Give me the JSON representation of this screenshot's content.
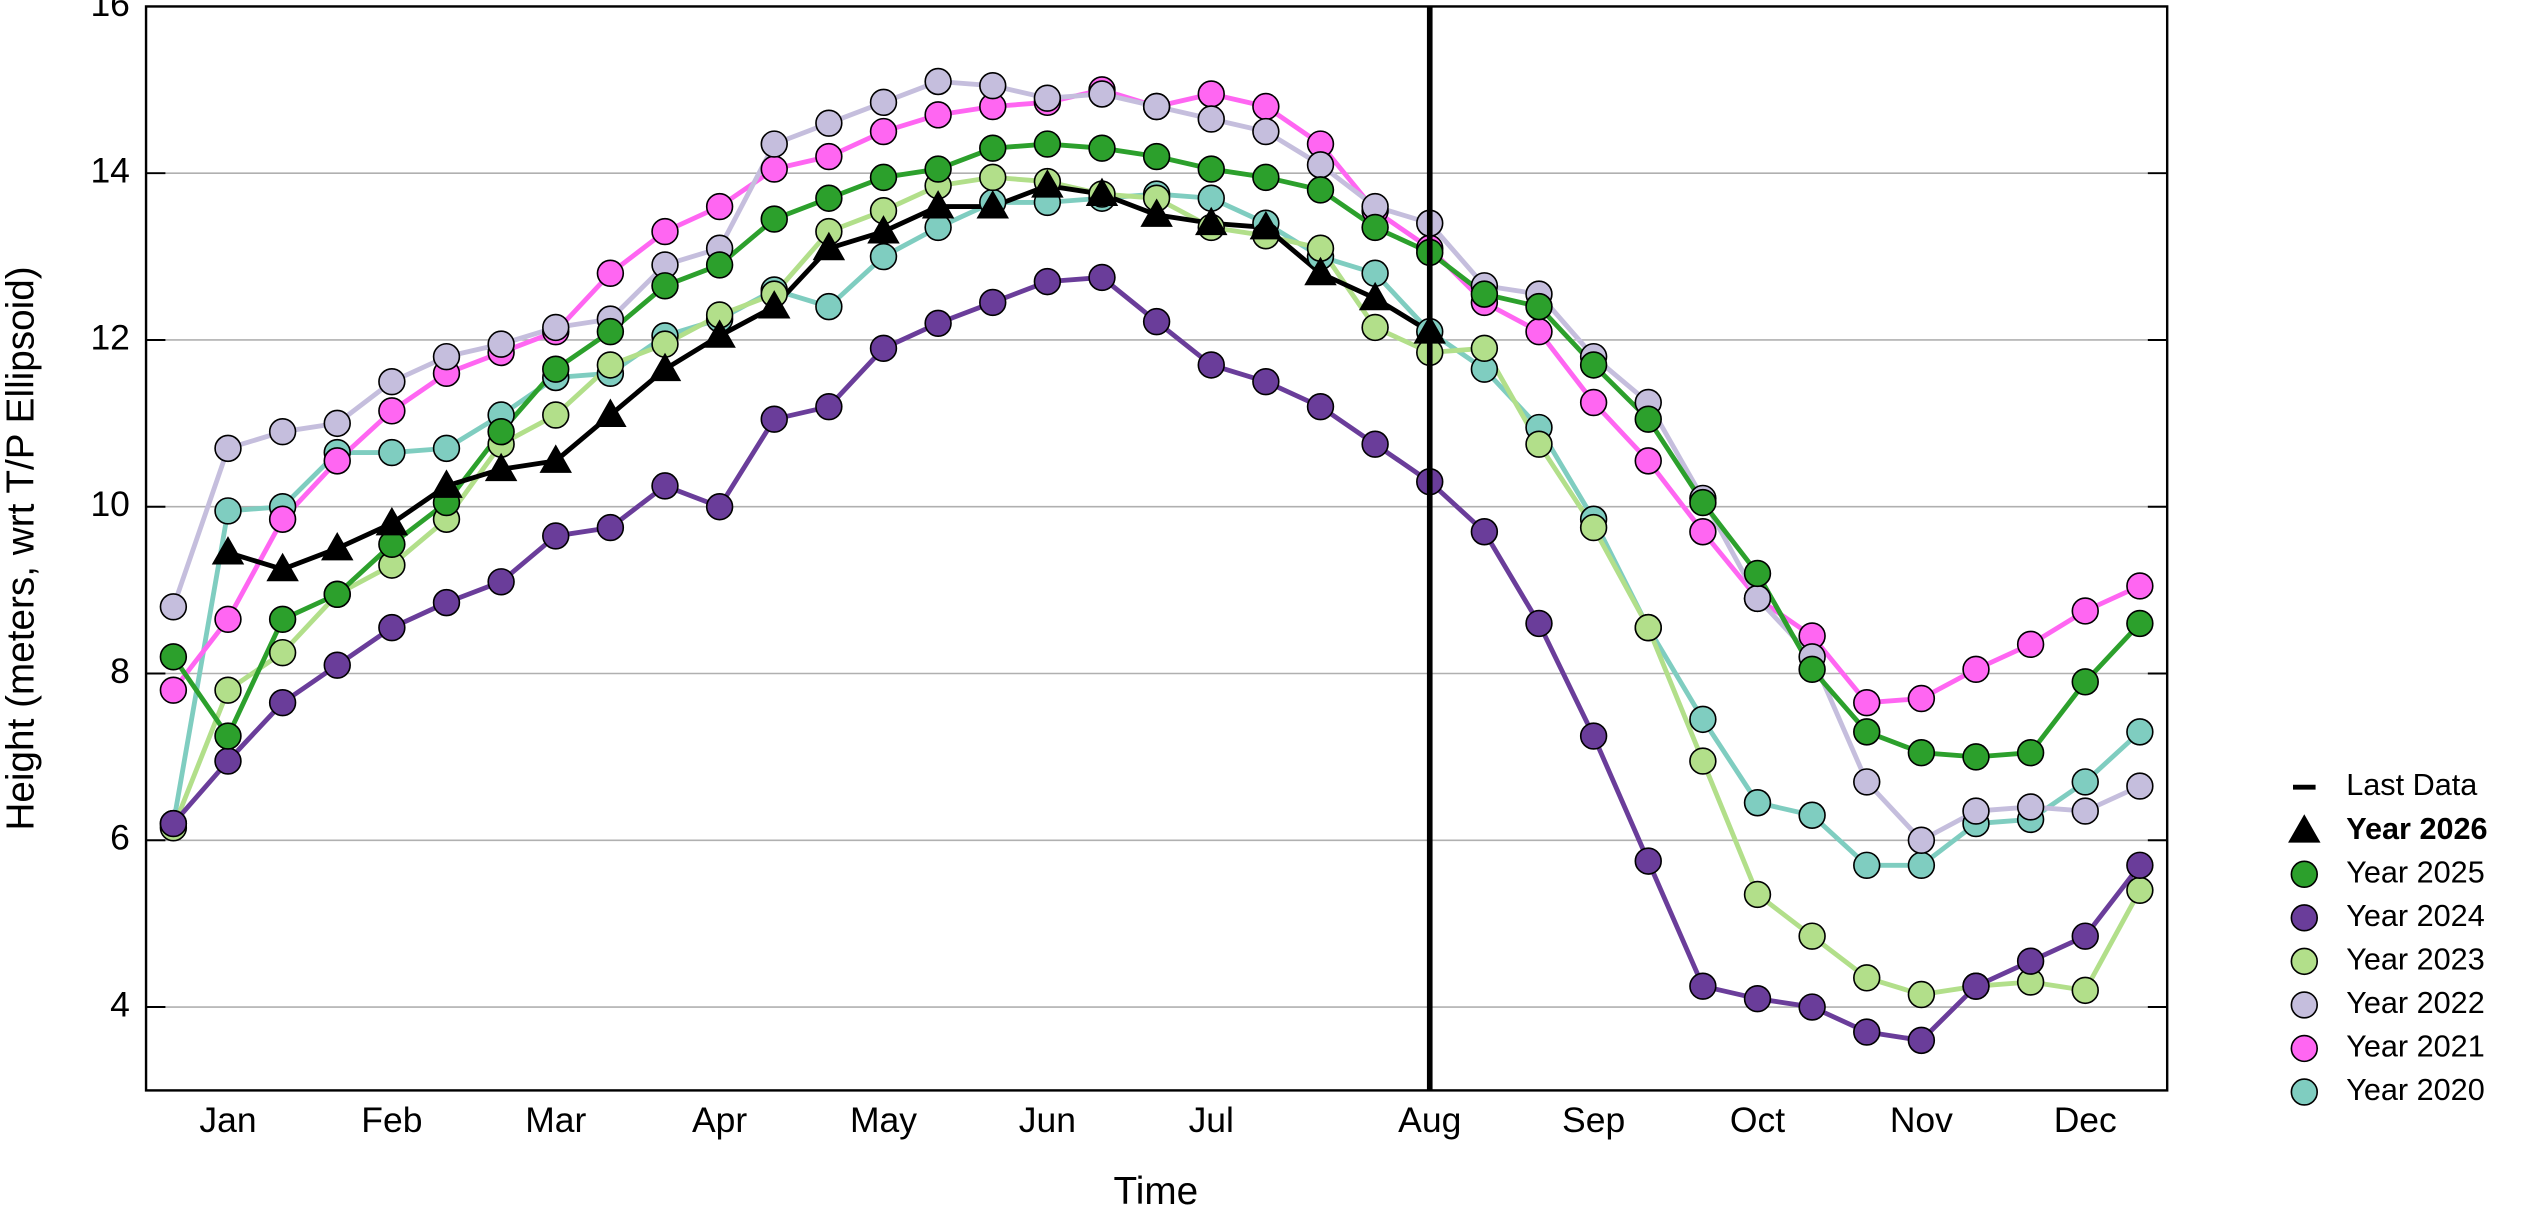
{
  "chart_data": {
    "type": "line",
    "x_label": "Time",
    "y_label": "Height (meters, wrt T/P Ellipsoid)",
    "last_data_label": "Last Data",
    "categories": [
      null,
      "Jan",
      null,
      null,
      "Feb",
      null,
      null,
      "Mar",
      null,
      null,
      "Apr",
      null,
      null,
      "May",
      null,
      null,
      "Jun",
      null,
      null,
      "Jul",
      null,
      null,
      null,
      "Aug",
      null,
      null,
      "Sep",
      null,
      null,
      "Oct",
      null,
      null,
      "Nov",
      null,
      null,
      "Dec",
      null
    ],
    "ylim": [
      3,
      16
    ],
    "yticks": [
      4,
      6,
      8,
      10,
      12,
      14,
      16
    ],
    "grid": true,
    "legend": "right",
    "series": [
      {
        "name": "Year 2026",
        "color": "#000000",
        "marker": "triangle",
        "bold": true,
        "values": [
          null,
          9.45,
          9.25,
          9.5,
          9.8,
          10.25,
          10.45,
          10.55,
          11.1,
          11.65,
          12.05,
          12.4,
          13.1,
          13.3,
          13.6,
          13.6,
          13.85,
          13.75,
          13.5,
          13.4,
          13.35,
          12.8,
          12.5,
          12.1,
          null,
          null,
          null,
          null,
          null,
          null,
          null,
          null,
          null,
          null,
          null,
          null,
          null
        ]
      },
      {
        "name": "Year 2025",
        "color": "#2ca02c",
        "marker": "circle",
        "values": [
          8.2,
          7.25,
          8.65,
          8.95,
          9.55,
          10.05,
          10.9,
          11.65,
          12.1,
          12.65,
          12.9,
          13.45,
          13.7,
          13.95,
          14.05,
          14.3,
          14.35,
          14.3,
          14.2,
          14.05,
          13.95,
          13.8,
          13.35,
          13.05,
          12.55,
          12.4,
          11.7,
          11.05,
          10.05,
          9.2,
          8.05,
          7.3,
          7.05,
          7.0,
          7.05,
          7.9,
          8.6
        ]
      },
      {
        "name": "Year 2024",
        "color": "#6a3d9a",
        "marker": "circle",
        "values": [
          6.2,
          6.95,
          7.65,
          8.1,
          8.55,
          8.85,
          9.1,
          9.65,
          9.75,
          10.25,
          10.0,
          11.05,
          11.2,
          11.9,
          12.2,
          12.45,
          12.7,
          12.75,
          12.22,
          11.7,
          11.5,
          11.2,
          10.75,
          10.3,
          9.7,
          8.6,
          7.25,
          5.75,
          4.25,
          4.1,
          4.0,
          3.7,
          3.6,
          4.25,
          4.55,
          4.85,
          5.7
        ]
      },
      {
        "name": "Year 2023",
        "color": "#b2df8a",
        "marker": "circle",
        "values": [
          6.15,
          7.8,
          8.25,
          8.95,
          9.3,
          9.85,
          10.75,
          11.1,
          11.7,
          11.95,
          12.3,
          12.55,
          13.3,
          13.55,
          13.85,
          13.95,
          13.9,
          13.75,
          13.7,
          13.35,
          13.25,
          13.1,
          12.15,
          11.85,
          11.9,
          10.75,
          9.75,
          8.55,
          6.95,
          5.35,
          4.85,
          4.35,
          4.15,
          4.25,
          4.3,
          4.2,
          5.4
        ]
      },
      {
        "name": "Year 2022",
        "color": "#c5bedd",
        "marker": "circle",
        "values": [
          8.8,
          10.7,
          10.9,
          11.0,
          11.5,
          11.8,
          11.95,
          12.15,
          12.25,
          12.9,
          13.1,
          14.35,
          14.6,
          14.85,
          15.1,
          15.05,
          14.9,
          14.95,
          14.8,
          14.65,
          14.5,
          14.1,
          13.6,
          13.4,
          12.65,
          12.55,
          11.8,
          11.25,
          10.1,
          8.9,
          8.2,
          6.7,
          6.0,
          6.35,
          6.4,
          6.35,
          6.65
        ]
      },
      {
        "name": "Year 2021",
        "color": "#ff66f2",
        "marker": "circle",
        "values": [
          7.8,
          8.65,
          9.85,
          10.55,
          11.15,
          11.6,
          11.85,
          12.1,
          12.8,
          13.3,
          13.6,
          14.05,
          14.2,
          14.5,
          14.7,
          14.8,
          14.85,
          15.0,
          14.8,
          14.95,
          14.8,
          14.35,
          13.55,
          13.1,
          12.45,
          12.1,
          11.25,
          10.55,
          9.7,
          8.9,
          8.45,
          7.65,
          7.7,
          8.05,
          8.35,
          8.75,
          9.05
        ]
      },
      {
        "name": "Year 2020",
        "color": "#7fcdc0",
        "marker": "circle",
        "values": [
          6.2,
          9.95,
          10.0,
          10.65,
          10.65,
          10.7,
          11.1,
          11.55,
          11.6,
          12.05,
          12.25,
          12.6,
          12.4,
          13.0,
          13.35,
          13.65,
          13.65,
          13.7,
          13.75,
          13.7,
          13.4,
          13.0,
          12.8,
          12.1,
          11.65,
          10.95,
          9.85,
          8.55,
          7.45,
          6.45,
          6.3,
          5.7,
          5.7,
          6.2,
          6.25,
          6.7,
          7.3
        ]
      }
    ]
  }
}
